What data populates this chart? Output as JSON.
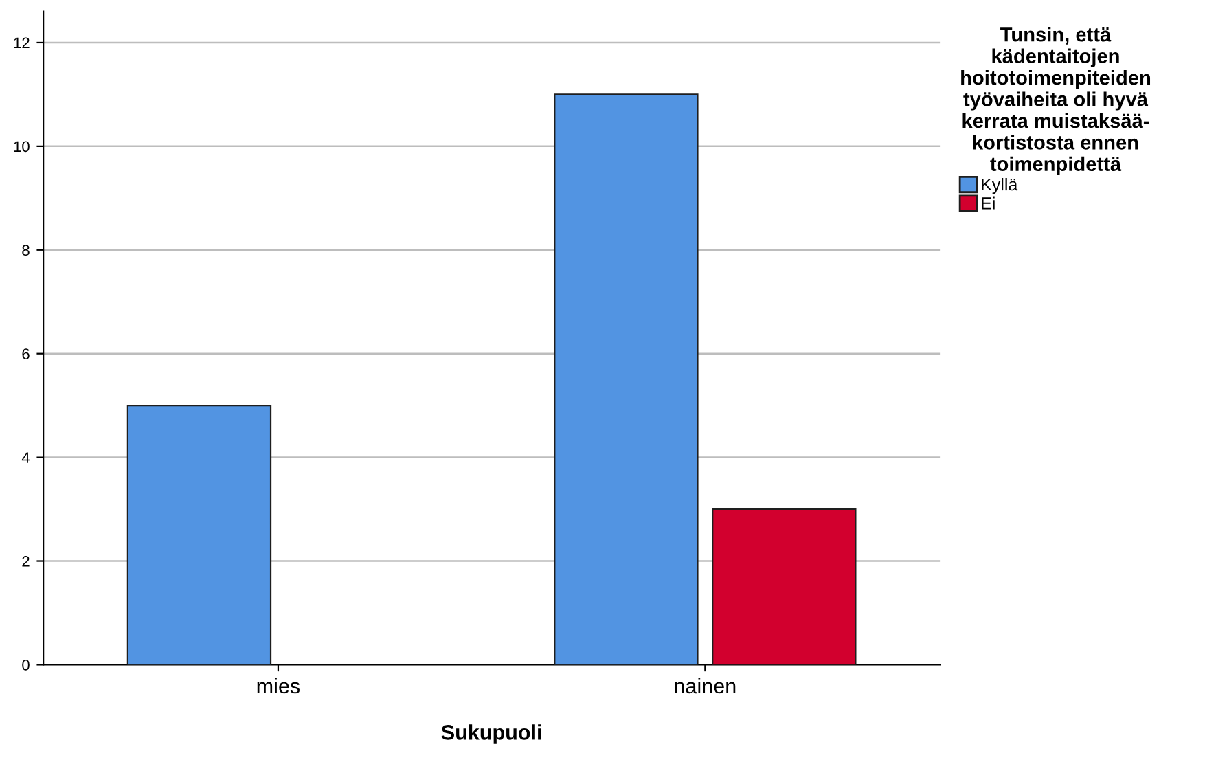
{
  "chart_data": {
    "type": "bar",
    "xlabel": "Sukupuoli",
    "legend_title": "Tunsin, että\nkädentaitojen\nhoitotoimenpiteiden\ntyövaiheita oli hyvä\nkerrata muistaksää-\nkortistosta ennen\ntoimenpidettä",
    "categories": [
      "mies",
      "nainen"
    ],
    "series": [
      {
        "name": "Kyllä",
        "color": "#5294e2",
        "values": [
          5,
          11
        ]
      },
      {
        "name": "Ei",
        "color": "#d2002e",
        "values": [
          0,
          3
        ]
      }
    ],
    "ylim": [
      0,
      12.6
    ],
    "yticks": [
      0,
      2,
      4,
      6,
      8,
      10,
      12
    ],
    "grid": "y",
    "legend": "right"
  }
}
